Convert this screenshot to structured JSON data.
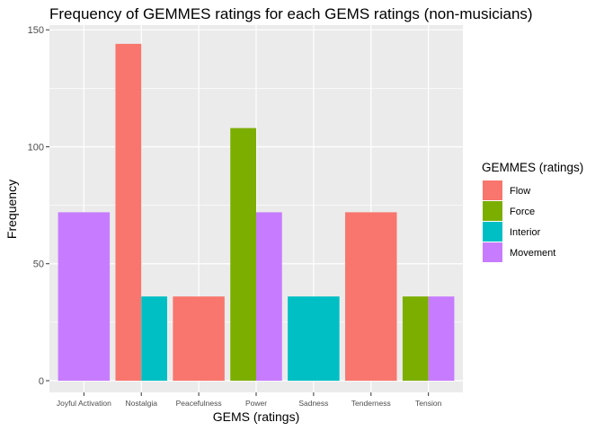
{
  "chart_data": {
    "type": "bar",
    "title": "Frequency of GEMMES ratings for each GEMS ratings (non-musicians)",
    "xlabel": "GEMS (ratings)",
    "ylabel": "Frequency",
    "ylim": [
      -5,
      152
    ],
    "yticks": [
      0,
      50,
      100,
      150
    ],
    "grid": true,
    "position": "dodge",
    "legend_placement": "right",
    "categories": [
      "Joyful Activation",
      "Nostalgia",
      "Peacefulness",
      "Power",
      "Sadness",
      "Tenderness",
      "Tension"
    ],
    "legend": {
      "title": "GEMMES (ratings)",
      "entries": [
        {
          "name": "Flow",
          "color": "#F8766D"
        },
        {
          "name": "Force",
          "color": "#7CAE00"
        },
        {
          "name": "Interior",
          "color": "#00BFC4"
        },
        {
          "name": "Movement",
          "color": "#C77CFF"
        }
      ]
    },
    "groups": [
      {
        "category": "Joyful Activation",
        "bars": [
          {
            "series": "Movement",
            "value": 72
          }
        ]
      },
      {
        "category": "Nostalgia",
        "bars": [
          {
            "series": "Flow",
            "value": 144
          },
          {
            "series": "Interior",
            "value": 36
          }
        ]
      },
      {
        "category": "Peacefulness",
        "bars": [
          {
            "series": "Flow",
            "value": 36
          }
        ]
      },
      {
        "category": "Power",
        "bars": [
          {
            "series": "Force",
            "value": 108
          },
          {
            "series": "Movement",
            "value": 72
          }
        ]
      },
      {
        "category": "Sadness",
        "bars": [
          {
            "series": "Interior",
            "value": 36
          }
        ]
      },
      {
        "category": "Tenderness",
        "bars": [
          {
            "series": "Flow",
            "value": 72
          }
        ]
      },
      {
        "category": "Tension",
        "bars": [
          {
            "series": "Force",
            "value": 36
          },
          {
            "series": "Movement",
            "value": 36
          }
        ]
      }
    ]
  }
}
